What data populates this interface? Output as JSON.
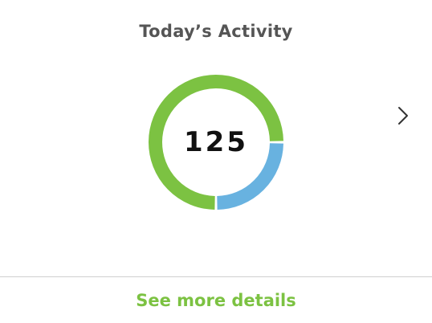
{
  "card": {
    "title": "Today’s Activity",
    "details_link": "See more details"
  },
  "chart_data": {
    "type": "pie",
    "center_label": "125",
    "slices": [
      {
        "value": 75,
        "color": "#7cc242"
      },
      {
        "value": 25,
        "color": "#68b2e0"
      }
    ]
  },
  "icons": {
    "next": "chevron-right-icon"
  },
  "colors": {
    "accent_green": "#7cc242",
    "accent_blue": "#68b2e0",
    "divider": "#cfcfcf"
  }
}
